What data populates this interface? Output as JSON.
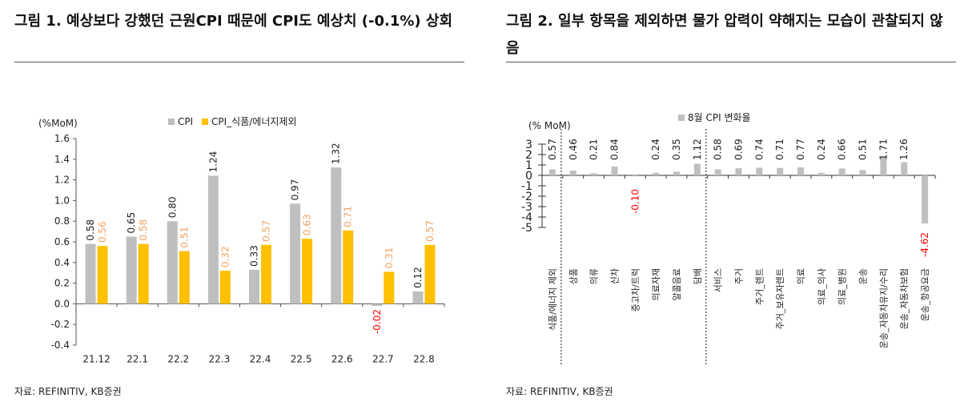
{
  "left": {
    "title": "그림 1. 예상보다 강했던 근원CPI 때문에 CPI도 예상치 (-0.1%) 상회",
    "source": "자료: REFINITIV, KB증권"
  },
  "right": {
    "title": "그림 2. 일부 항목을 제외하면 물가 압력이 약해지는 모습이 관찰되지 않음",
    "source": "자료: REFINITIV, KB증권"
  },
  "chart_data": [
    {
      "type": "bar",
      "ylabel": "(%MoM)",
      "ylim": [
        -0.4,
        1.6
      ],
      "yticks": [
        "1.6",
        "1.4",
        "1.2",
        "1.0",
        "0.8",
        "0.6",
        "0.4",
        "0.2",
        "0.0",
        "-0.2",
        "-0.4"
      ],
      "legend": "top",
      "categories": [
        "21.12",
        "22.1",
        "22.2",
        "22.3",
        "22.4",
        "22.5",
        "22.6",
        "22.7",
        "22.8"
      ],
      "series": [
        {
          "name": "CPI",
          "color": "#bfbfbf",
          "values": [
            0.58,
            0.65,
            0.8,
            1.24,
            0.33,
            0.97,
            1.32,
            -0.02,
            0.12
          ],
          "labels": [
            "0.58",
            "0.65",
            "0.80",
            "1.24",
            "0.33",
            "0.97",
            "1.32",
            "-0.02",
            "0.12"
          ]
        },
        {
          "name": "CPI_식품/에너지제외",
          "color": "#ffc000",
          "values": [
            0.56,
            0.58,
            0.51,
            0.32,
            0.57,
            0.63,
            0.71,
            0.31,
            0.57
          ],
          "labels": [
            "0.56",
            "0.58",
            "0.51",
            "0.32",
            "0.57",
            "0.63",
            "0.71",
            "0.31",
            "0.57"
          ]
        }
      ]
    },
    {
      "type": "bar",
      "ylabel": "(% MoM)",
      "ylim": [
        -5,
        3
      ],
      "yticks": [
        "3",
        "2",
        "1",
        "0",
        "-1",
        "-2",
        "-3",
        "-4",
        "-5"
      ],
      "legend": "top",
      "categories": [
        "식품/에너지 제외",
        "상품",
        "의류",
        "신차",
        "중고차/트럭",
        "의료자재",
        "알콜음료",
        "담배",
        "서비스",
        "주거",
        "주거_렌트",
        "주거_보유자렌트",
        "의료",
        "의료_의사",
        "의료_병원",
        "운송",
        "운송_자동차유지/수리",
        "운송_자동차보험",
        "운송_항공요금"
      ],
      "series": [
        {
          "name": "8월 CPI 변화율",
          "color": "#bfbfbf",
          "values": [
            0.57,
            0.46,
            0.21,
            0.84,
            -0.1,
            0.24,
            0.35,
            1.12,
            0.58,
            0.69,
            0.74,
            0.71,
            0.77,
            0.24,
            0.66,
            0.51,
            1.71,
            1.26,
            -4.62
          ],
          "labels": [
            "0.57",
            "0.46",
            "0.21",
            "0.84",
            "-0.10",
            "0.24",
            "0.35",
            "1.12",
            "0.58",
            "0.69",
            "0.74",
            "0.71",
            "0.77",
            "0.24",
            "0.66",
            "0.51",
            "1.71",
            "1.26",
            "-4.62"
          ]
        }
      ],
      "negative_label_color": "#ff0000"
    }
  ]
}
